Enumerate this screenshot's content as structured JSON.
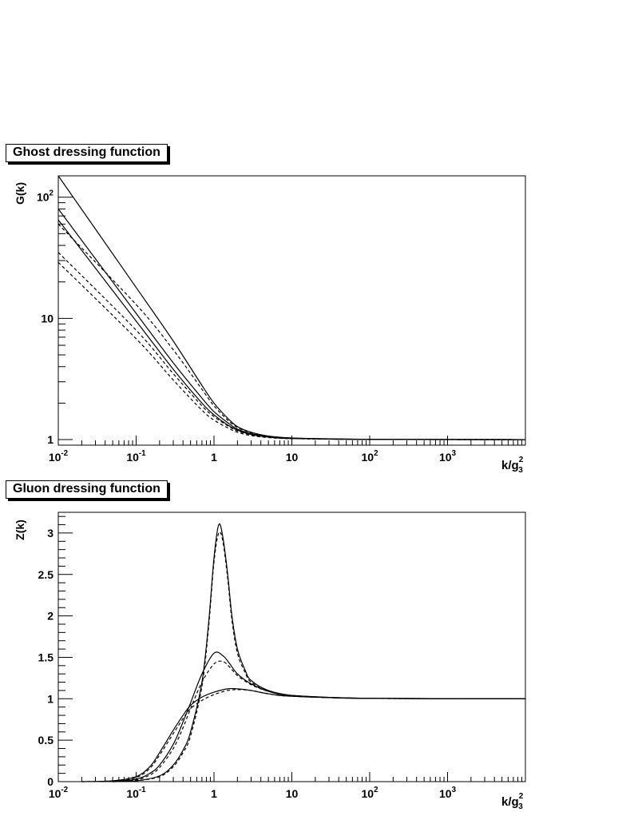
{
  "chart_data": [
    {
      "type": "line",
      "title": "Ghost dressing function",
      "xlabel": "k/g",
      "xlabel_sup": "2",
      "xlabel_sub": "3",
      "ylabel": "G(k)",
      "xscale": "log",
      "yscale": "log",
      "xlim": [
        0.01,
        10000
      ],
      "ylim": [
        0.9,
        150
      ],
      "xticks": [
        {
          "base": "10",
          "exp": "-2",
          "value": 0.01
        },
        {
          "base": "10",
          "exp": "-1",
          "value": 0.1
        },
        {
          "base": "1",
          "exp": "",
          "value": 1
        },
        {
          "base": "10",
          "exp": "",
          "value": 10
        },
        {
          "base": "10",
          "exp": "2",
          "value": 100
        },
        {
          "base": "10",
          "exp": "3",
          "value": 1000
        }
      ],
      "yticks": [
        {
          "base": "1",
          "exp": "",
          "value": 1
        },
        {
          "base": "10",
          "exp": "",
          "value": 10
        },
        {
          "base": "10",
          "exp": "2",
          "value": 100
        }
      ],
      "grid": false,
      "series": [
        {
          "style": "solid",
          "points": [
            [
              0.01,
              150
            ],
            [
              0.1,
              18
            ],
            [
              0.3,
              6.5
            ],
            [
              0.7,
              2.8
            ],
            [
              1,
              2.0
            ],
            [
              1.5,
              1.5
            ],
            [
              2,
              1.28
            ],
            [
              3,
              1.15
            ],
            [
              5,
              1.07
            ],
            [
              10,
              1.03
            ],
            [
              30,
              1.01
            ],
            [
              100,
              1.005
            ],
            [
              10000,
              1.0
            ]
          ]
        },
        {
          "style": "solid",
          "points": [
            [
              0.01,
              80
            ],
            [
              0.1,
              11
            ],
            [
              0.3,
              4.3
            ],
            [
              0.7,
              2.2
            ],
            [
              1,
              1.7
            ],
            [
              1.5,
              1.38
            ],
            [
              2,
              1.22
            ],
            [
              3,
              1.12
            ],
            [
              5,
              1.06
            ],
            [
              10,
              1.03
            ],
            [
              100,
              1.005
            ],
            [
              10000,
              1.0
            ]
          ]
        },
        {
          "style": "solid",
          "points": [
            [
              0.01,
              65
            ],
            [
              0.1,
              9.5
            ],
            [
              0.3,
              3.8
            ],
            [
              0.7,
              2.0
            ],
            [
              1,
              1.6
            ],
            [
              1.5,
              1.32
            ],
            [
              2,
              1.2
            ],
            [
              3,
              1.1
            ],
            [
              5,
              1.05
            ],
            [
              10,
              1.02
            ],
            [
              100,
              1.005
            ],
            [
              10000,
              1.0
            ]
          ]
        },
        {
          "style": "dashed",
          "points": [
            [
              0.01,
              60
            ],
            [
              0.1,
              13
            ],
            [
              0.3,
              5.5
            ],
            [
              0.7,
              2.6
            ],
            [
              1,
              1.9
            ],
            [
              1.5,
              1.45
            ],
            [
              2,
              1.26
            ],
            [
              3,
              1.14
            ],
            [
              5,
              1.06
            ],
            [
              10,
              1.03
            ],
            [
              100,
              1.005
            ],
            [
              10000,
              1.0
            ]
          ]
        },
        {
          "style": "dashed",
          "points": [
            [
              0.01,
              35
            ],
            [
              0.1,
              8
            ],
            [
              0.3,
              3.5
            ],
            [
              0.7,
              1.9
            ],
            [
              1,
              1.55
            ],
            [
              1.5,
              1.3
            ],
            [
              2,
              1.18
            ],
            [
              3,
              1.1
            ],
            [
              5,
              1.05
            ],
            [
              10,
              1.02
            ],
            [
              100,
              1.005
            ],
            [
              10000,
              1.0
            ]
          ]
        },
        {
          "style": "dashed",
          "points": [
            [
              0.01,
              29
            ],
            [
              0.1,
              6.8
            ],
            [
              0.3,
              3.1
            ],
            [
              0.7,
              1.75
            ],
            [
              1,
              1.45
            ],
            [
              1.5,
              1.25
            ],
            [
              2,
              1.15
            ],
            [
              3,
              1.08
            ],
            [
              5,
              1.04
            ],
            [
              10,
              1.02
            ],
            [
              100,
              1.005
            ],
            [
              10000,
              1.0
            ]
          ]
        }
      ]
    },
    {
      "type": "line",
      "title": "Gluon dressing function",
      "xlabel": "k/g",
      "xlabel_sup": "2",
      "xlabel_sub": "3",
      "ylabel": "Z(k)",
      "xscale": "log",
      "yscale": "linear",
      "xlim": [
        0.01,
        10000
      ],
      "ylim": [
        0,
        3.25
      ],
      "xticks": [
        {
          "base": "10",
          "exp": "-2",
          "value": 0.01
        },
        {
          "base": "10",
          "exp": "-1",
          "value": 0.1
        },
        {
          "base": "1",
          "exp": "",
          "value": 1
        },
        {
          "base": "10",
          "exp": "",
          "value": 10
        },
        {
          "base": "10",
          "exp": "2",
          "value": 100
        },
        {
          "base": "10",
          "exp": "3",
          "value": 1000
        }
      ],
      "yticks": [
        {
          "label": "0",
          "value": 0
        },
        {
          "label": "0.5",
          "value": 0.5
        },
        {
          "label": "1",
          "value": 1
        },
        {
          "label": "1.5",
          "value": 1.5
        },
        {
          "label": "2",
          "value": 2
        },
        {
          "label": "2.5",
          "value": 2.5
        },
        {
          "label": "3",
          "value": 3
        }
      ],
      "grid": false,
      "series": [
        {
          "style": "solid",
          "points": [
            [
              0.05,
              0
            ],
            [
              0.1,
              0.01
            ],
            [
              0.2,
              0.07
            ],
            [
              0.3,
              0.2
            ],
            [
              0.4,
              0.38
            ],
            [
              0.5,
              0.6
            ],
            [
              0.7,
              1.2
            ],
            [
              0.85,
              1.9
            ],
            [
              1.0,
              2.7
            ],
            [
              1.15,
              3.1
            ],
            [
              1.3,
              2.95
            ],
            [
              1.5,
              2.5
            ],
            [
              1.7,
              2.0
            ],
            [
              2,
              1.6
            ],
            [
              2.5,
              1.35
            ],
            [
              3,
              1.22
            ],
            [
              5,
              1.1
            ],
            [
              10,
              1.04
            ],
            [
              30,
              1.015
            ],
            [
              100,
              1.005
            ],
            [
              10000,
              1.0
            ]
          ]
        },
        {
          "style": "dashed",
          "points": [
            [
              0.05,
              0
            ],
            [
              0.1,
              0.01
            ],
            [
              0.2,
              0.06
            ],
            [
              0.3,
              0.18
            ],
            [
              0.4,
              0.35
            ],
            [
              0.5,
              0.55
            ],
            [
              0.7,
              1.15
            ],
            [
              0.85,
              1.85
            ],
            [
              1.0,
              2.65
            ],
            [
              1.15,
              3.0
            ],
            [
              1.3,
              2.9
            ],
            [
              1.5,
              2.45
            ],
            [
              1.7,
              1.95
            ],
            [
              2,
              1.55
            ],
            [
              2.5,
              1.32
            ],
            [
              3,
              1.2
            ],
            [
              5,
              1.09
            ],
            [
              10,
              1.04
            ],
            [
              30,
              1.015
            ],
            [
              100,
              1.005
            ],
            [
              10000,
              1.0
            ]
          ]
        },
        {
          "style": "solid",
          "points": [
            [
              0.05,
              0
            ],
            [
              0.1,
              0.03
            ],
            [
              0.15,
              0.1
            ],
            [
              0.2,
              0.2
            ],
            [
              0.3,
              0.45
            ],
            [
              0.4,
              0.72
            ],
            [
              0.5,
              0.95
            ],
            [
              0.7,
              1.3
            ],
            [
              1.0,
              1.55
            ],
            [
              1.3,
              1.52
            ],
            [
              1.6,
              1.42
            ],
            [
              2,
              1.3
            ],
            [
              3,
              1.18
            ],
            [
              5,
              1.09
            ],
            [
              10,
              1.04
            ],
            [
              100,
              1.005
            ],
            [
              10000,
              1.0
            ]
          ]
        },
        {
          "style": "dashed",
          "points": [
            [
              0.05,
              0
            ],
            [
              0.1,
              0.02
            ],
            [
              0.15,
              0.08
            ],
            [
              0.2,
              0.17
            ],
            [
              0.3,
              0.4
            ],
            [
              0.4,
              0.65
            ],
            [
              0.5,
              0.88
            ],
            [
              0.7,
              1.2
            ],
            [
              1.0,
              1.42
            ],
            [
              1.3,
              1.45
            ],
            [
              1.6,
              1.38
            ],
            [
              2,
              1.28
            ],
            [
              3,
              1.17
            ],
            [
              5,
              1.09
            ],
            [
              10,
              1.04
            ],
            [
              100,
              1.005
            ],
            [
              10000,
              1.0
            ]
          ]
        },
        {
          "style": "solid",
          "points": [
            [
              0.02,
              0
            ],
            [
              0.05,
              0.01
            ],
            [
              0.1,
              0.06
            ],
            [
              0.15,
              0.18
            ],
            [
              0.2,
              0.35
            ],
            [
              0.3,
              0.62
            ],
            [
              0.4,
              0.8
            ],
            [
              0.5,
              0.92
            ],
            [
              0.7,
              1.02
            ],
            [
              1.0,
              1.08
            ],
            [
              1.5,
              1.12
            ],
            [
              2,
              1.12
            ],
            [
              3,
              1.1
            ],
            [
              5,
              1.06
            ],
            [
              10,
              1.03
            ],
            [
              100,
              1.005
            ],
            [
              10000,
              1.0
            ]
          ]
        },
        {
          "style": "dashed",
          "points": [
            [
              0.02,
              0
            ],
            [
              0.05,
              0.01
            ],
            [
              0.1,
              0.05
            ],
            [
              0.15,
              0.16
            ],
            [
              0.2,
              0.32
            ],
            [
              0.3,
              0.58
            ],
            [
              0.4,
              0.76
            ],
            [
              0.5,
              0.88
            ],
            [
              0.7,
              0.98
            ],
            [
              1.0,
              1.05
            ],
            [
              1.5,
              1.1
            ],
            [
              2,
              1.11
            ],
            [
              3,
              1.1
            ],
            [
              5,
              1.06
            ],
            [
              10,
              1.03
            ],
            [
              100,
              1.005
            ],
            [
              10000,
              1.0
            ]
          ]
        }
      ]
    }
  ]
}
